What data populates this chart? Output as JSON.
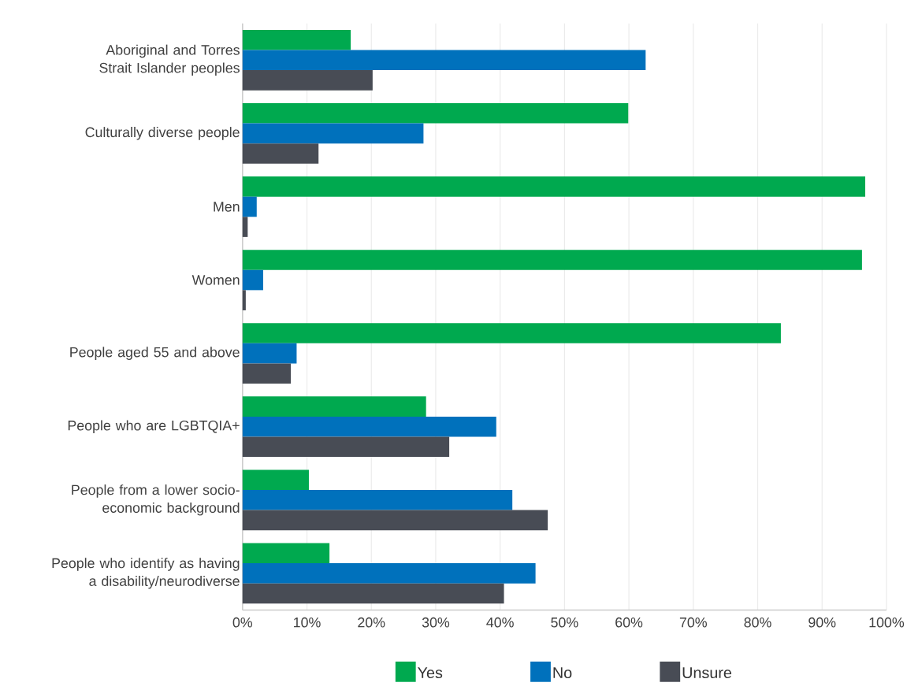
{
  "chart_data": {
    "type": "bar",
    "orientation": "horizontal",
    "categories": [
      "Aboriginal and Torres Strait Islander peoples",
      "Culturally diverse people",
      "Men",
      "Women",
      "People aged 55 and above",
      "People who are LGBTQIA+",
      "People from a lower socio-economic background",
      "People who identify as having a disability/neurodiverse"
    ],
    "series": [
      {
        "name": "Yes",
        "color": "#00a94f",
        "values": [
          16.8,
          59.9,
          96.7,
          96.2,
          83.6,
          28.5,
          10.3,
          13.5
        ]
      },
      {
        "name": "No",
        "color": "#0071bc",
        "values": [
          62.6,
          28.1,
          2.2,
          3.2,
          8.4,
          39.4,
          41.9,
          45.5
        ]
      },
      {
        "name": "Unsure",
        "color": "#484c55",
        "values": [
          20.2,
          11.8,
          0.8,
          0.5,
          7.5,
          32.1,
          47.4,
          40.6
        ]
      }
    ],
    "xlim": [
      0,
      100
    ],
    "xticks": [
      {
        "value": 0,
        "label": "0%"
      },
      {
        "value": 10,
        "label": "10%"
      },
      {
        "value": 20,
        "label": "20%"
      },
      {
        "value": 30,
        "label": "30%"
      },
      {
        "value": 40,
        "label": "40%"
      },
      {
        "value": 50,
        "label": "50%"
      },
      {
        "value": 60,
        "label": "60%"
      },
      {
        "value": 70,
        "label": "70%"
      },
      {
        "value": 80,
        "label": "80%"
      },
      {
        "value": 90,
        "label": "90%"
      },
      {
        "value": 100,
        "label": "100%"
      }
    ],
    "grid": "x",
    "legend": "bottom"
  }
}
